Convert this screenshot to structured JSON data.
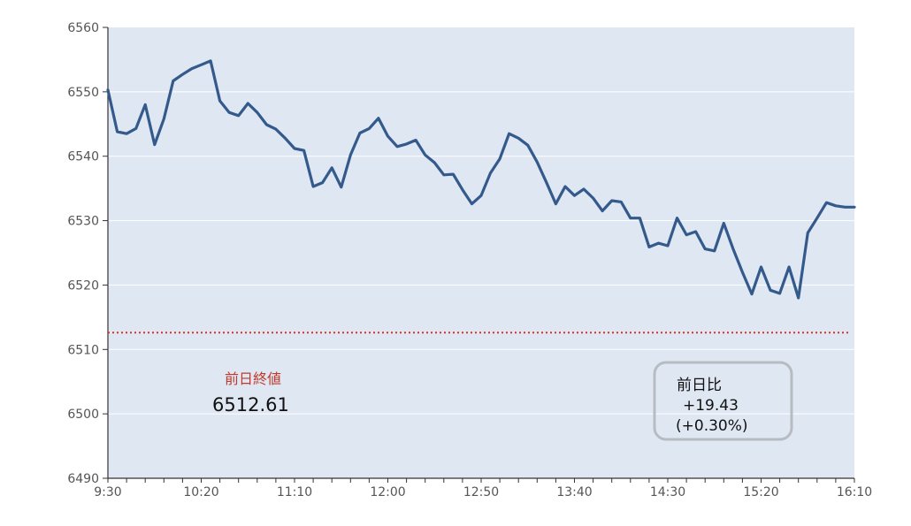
{
  "chart_data": {
    "type": "line",
    "title": "",
    "xlabel": "",
    "ylabel": "",
    "ylim": [
      6490,
      6560
    ],
    "yticks": [
      6490,
      6500,
      6510,
      6520,
      6530,
      6540,
      6550,
      6560
    ],
    "xlim": [
      "9:30",
      "16:10"
    ],
    "xticks": [
      "9:30",
      "10:20",
      "11:10",
      "12:00",
      "12:50",
      "13:40",
      "14:30",
      "15:20",
      "16:10"
    ],
    "grid": true,
    "colors": {
      "plot_background": "#dfe7f3",
      "line": "#345a8c",
      "reference_line": "#d9302a",
      "gridline": "#ffffff"
    },
    "series": [
      {
        "x": [
          "9:30",
          "9:35",
          "9:40",
          "9:45",
          "9:50",
          "9:55",
          "10:00",
          "10:05",
          "10:10",
          "10:15",
          "10:20",
          "10:25",
          "10:30",
          "10:35",
          "10:40",
          "10:45",
          "10:50",
          "10:55",
          "11:00",
          "11:05",
          "11:10",
          "11:15",
          "11:20",
          "11:25",
          "11:30",
          "11:35",
          "11:40",
          "11:45",
          "11:50",
          "11:55",
          "12:00",
          "12:05",
          "12:10",
          "12:15",
          "12:20",
          "12:25",
          "12:30",
          "12:35",
          "12:40",
          "12:45",
          "12:50",
          "12:55",
          "13:00",
          "13:05",
          "13:10",
          "13:15",
          "13:20",
          "13:25",
          "13:30",
          "13:35",
          "13:40",
          "13:45",
          "13:50",
          "13:55",
          "14:00",
          "14:05",
          "14:10",
          "14:15",
          "14:20",
          "14:25",
          "14:30",
          "14:35",
          "14:40",
          "14:45",
          "14:50",
          "14:55",
          "15:00",
          "15:05",
          "15:10",
          "15:15",
          "15:20",
          "15:25",
          "15:30",
          "15:35",
          "15:40",
          "15:45",
          "15:50",
          "15:55",
          "16:00",
          "16:05",
          "16:10"
        ],
        "values": [
          6550.3,
          6543.8,
          6543.5,
          6544.3,
          6548.0,
          6541.8,
          6545.8,
          6551.7,
          6552.7,
          6553.6,
          6554.2,
          6554.8,
          6548.6,
          6546.8,
          6546.3,
          6548.2,
          6546.8,
          6544.9,
          6544.2,
          6542.8,
          6541.2,
          6540.9,
          6535.3,
          6535.9,
          6538.2,
          6535.2,
          6540.2,
          6543.6,
          6544.3,
          6545.9,
          6543.1,
          6541.5,
          6541.9,
          6542.5,
          6540.2,
          6539.0,
          6537.1,
          6537.2,
          6534.8,
          6532.6,
          6533.9,
          6537.4,
          6539.6,
          6543.5,
          6542.8,
          6541.7,
          6539.1,
          6535.9,
          6532.6,
          6535.3,
          6533.9,
          6534.9,
          6533.5,
          6531.5,
          6533.1,
          6532.9,
          6530.4,
          6530.4,
          6525.9,
          6526.5,
          6526.1,
          6530.4,
          6527.8,
          6528.3,
          6525.6,
          6525.3,
          6529.6,
          6525.6,
          6522.0,
          6518.6,
          6522.8,
          6519.2,
          6518.7,
          6522.8,
          6518.0,
          6528.1,
          6530.4,
          6532.8,
          6532.3,
          6532.1,
          6532.1
        ]
      }
    ],
    "reference": {
      "label": "前日終値",
      "value": 6512.61,
      "value_text": "6512.61"
    },
    "change_box": {
      "label": "前日比",
      "change": "+19.43",
      "percent": "(+0.30%)"
    }
  }
}
